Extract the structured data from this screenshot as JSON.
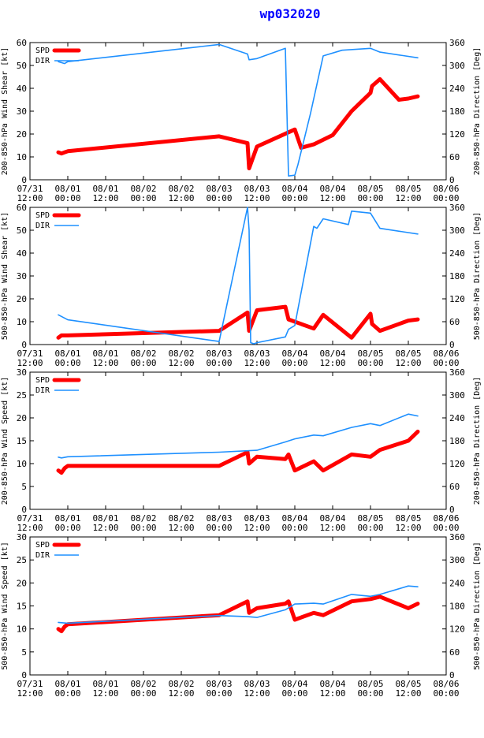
{
  "title": "wp032020",
  "colors": {
    "spd": "#ff0000",
    "dir": "#1e90ff",
    "axis": "#000000",
    "title": "#0000ff"
  },
  "x_tick_labels": [
    [
      "07/31",
      "12:00"
    ],
    [
      "08/01",
      "00:00"
    ],
    [
      "08/01",
      "12:00"
    ],
    [
      "08/02",
      "00:00"
    ],
    [
      "08/02",
      "12:00"
    ],
    [
      "08/03",
      "00:00"
    ],
    [
      "08/03",
      "12:00"
    ],
    [
      "08/04",
      "00:00"
    ],
    [
      "08/04",
      "12:00"
    ],
    [
      "08/05",
      "00:00"
    ],
    [
      "08/05",
      "12:00"
    ],
    [
      "08/06",
      "00:00"
    ]
  ],
  "chart_data": [
    {
      "type": "line",
      "ylabel_left": "200-850-hPa Wind Shear [kt]",
      "ylabel_right": "200-850-hPa Direction [Deg]",
      "ylim_left": [
        0,
        60
      ],
      "yticks_left": [
        0,
        10,
        20,
        30,
        40,
        50,
        60
      ],
      "ylim_right": [
        0,
        360
      ],
      "yticks_right": [
        0,
        60,
        120,
        180,
        240,
        300,
        360
      ],
      "xlim_hours": [
        0,
        132
      ],
      "legend": [
        "SPD",
        "DIR"
      ],
      "series": [
        {
          "name": "SPD",
          "axis": "left",
          "x": [
            9,
            10,
            11,
            12,
            60,
            69,
            69.5,
            72,
            84,
            86,
            90,
            96,
            102,
            108,
            108.5,
            111,
            117,
            120,
            123
          ],
          "y": [
            12,
            11.5,
            12,
            12.5,
            19,
            16,
            5,
            14.5,
            22,
            14,
            15.5,
            19.5,
            30,
            38,
            41,
            44,
            35,
            35.5,
            36.5
          ]
        },
        {
          "name": "DIR",
          "axis": "right",
          "x": [
            9,
            11,
            12,
            60,
            69,
            69.5,
            72,
            81,
            82,
            84,
            85,
            89,
            93,
            99,
            108,
            111,
            123
          ],
          "y": [
            310,
            305,
            310,
            355,
            330,
            315,
            318,
            345,
            10,
            12,
            40,
            175,
            325,
            340,
            345,
            335,
            320
          ]
        }
      ]
    },
    {
      "type": "line",
      "ylabel_left": "500-850-hPa Wind Shear [kt]",
      "ylabel_right": "500-850-hPa Direction [Deg]",
      "ylim_left": [
        0,
        60
      ],
      "yticks_left": [
        0,
        10,
        20,
        30,
        40,
        50,
        60
      ],
      "ylim_right": [
        0,
        360
      ],
      "yticks_right": [
        0,
        60,
        120,
        180,
        240,
        300,
        360
      ],
      "xlim_hours": [
        0,
        132
      ],
      "legend": [
        "SPD",
        "DIR"
      ],
      "series": [
        {
          "name": "SPD",
          "axis": "left",
          "x": [
            9,
            10,
            12,
            60,
            69,
            69.5,
            72,
            81,
            82,
            90,
            93,
            102,
            108,
            108.5,
            111,
            120,
            123
          ],
          "y": [
            3,
            4,
            4,
            6,
            14,
            6,
            15,
            16.5,
            11,
            7,
            13,
            3,
            13.5,
            9,
            6,
            10.5,
            11
          ]
        },
        {
          "name": "DIR",
          "axis": "right",
          "x": [
            9,
            12,
            60,
            69,
            69.5,
            70,
            71,
            72,
            81,
            82,
            84,
            90,
            91,
            93,
            101,
            102,
            108,
            111,
            123
          ],
          "y": [
            78,
            65,
            8,
            360,
            300,
            5,
            2,
            5,
            20,
            40,
            50,
            310,
            305,
            330,
            315,
            350,
            345,
            305,
            290
          ]
        }
      ]
    },
    {
      "type": "line",
      "ylabel_left": "200-850-hPa Wind Speed [kt]",
      "ylabel_right": "200-850-hPa Direction [Deg]",
      "ylim_left": [
        0,
        30
      ],
      "yticks_left": [
        0,
        5,
        10,
        15,
        20,
        25,
        30
      ],
      "ylim_right": [
        0,
        360
      ],
      "yticks_right": [
        0,
        60,
        120,
        180,
        240,
        300,
        360
      ],
      "xlim_hours": [
        0,
        132
      ],
      "legend": [
        "SPD",
        "DIR"
      ],
      "series": [
        {
          "name": "SPD",
          "axis": "left",
          "x": [
            9,
            10,
            11,
            12,
            60,
            69,
            69.5,
            72,
            81,
            82,
            84,
            90,
            93,
            102,
            108,
            111,
            120,
            123
          ],
          "y": [
            8.5,
            8,
            9,
            9.5,
            9.5,
            12.5,
            10,
            11.5,
            11,
            12,
            8.5,
            10.5,
            8.5,
            12,
            11.5,
            13,
            15,
            17
          ]
        },
        {
          "name": "DIR",
          "axis": "right",
          "x": [
            9,
            10,
            12,
            60,
            72,
            81,
            84,
            90,
            93,
            102,
            108,
            111,
            120,
            123
          ],
          "y": [
            137,
            135,
            138,
            150,
            155,
            177,
            185,
            195,
            193,
            215,
            225,
            220,
            250,
            245
          ]
        }
      ]
    },
    {
      "type": "line",
      "ylabel_left": "500-850-hPa Wind Speed [kt]",
      "ylabel_right": "500-850-hPa Direction [Deg]",
      "ylim_left": [
        0,
        30
      ],
      "yticks_left": [
        0,
        5,
        10,
        15,
        20,
        25,
        30
      ],
      "ylim_right": [
        0,
        360
      ],
      "yticks_right": [
        0,
        60,
        120,
        180,
        240,
        300,
        360
      ],
      "xlim_hours": [
        0,
        132
      ],
      "legend": [
        "SPD",
        "DIR"
      ],
      "series": [
        {
          "name": "SPD",
          "axis": "left",
          "x": [
            9,
            10,
            11,
            12,
            60,
            69,
            69.5,
            72,
            81,
            82,
            84,
            90,
            93,
            102,
            108,
            111,
            120,
            123
          ],
          "y": [
            10,
            9.5,
            10.5,
            11,
            13,
            16,
            13.5,
            14.5,
            15.5,
            16,
            12,
            13.5,
            13,
            16,
            16.5,
            17,
            14.5,
            15.5
          ]
        },
        {
          "name": "DIR",
          "axis": "right",
          "x": [
            9,
            12,
            60,
            69,
            72,
            81,
            84,
            90,
            93,
            102,
            108,
            111,
            120,
            123
          ],
          "y": [
            137,
            135,
            155,
            152,
            150,
            170,
            185,
            187,
            185,
            210,
            205,
            210,
            232,
            230
          ]
        }
      ]
    }
  ]
}
